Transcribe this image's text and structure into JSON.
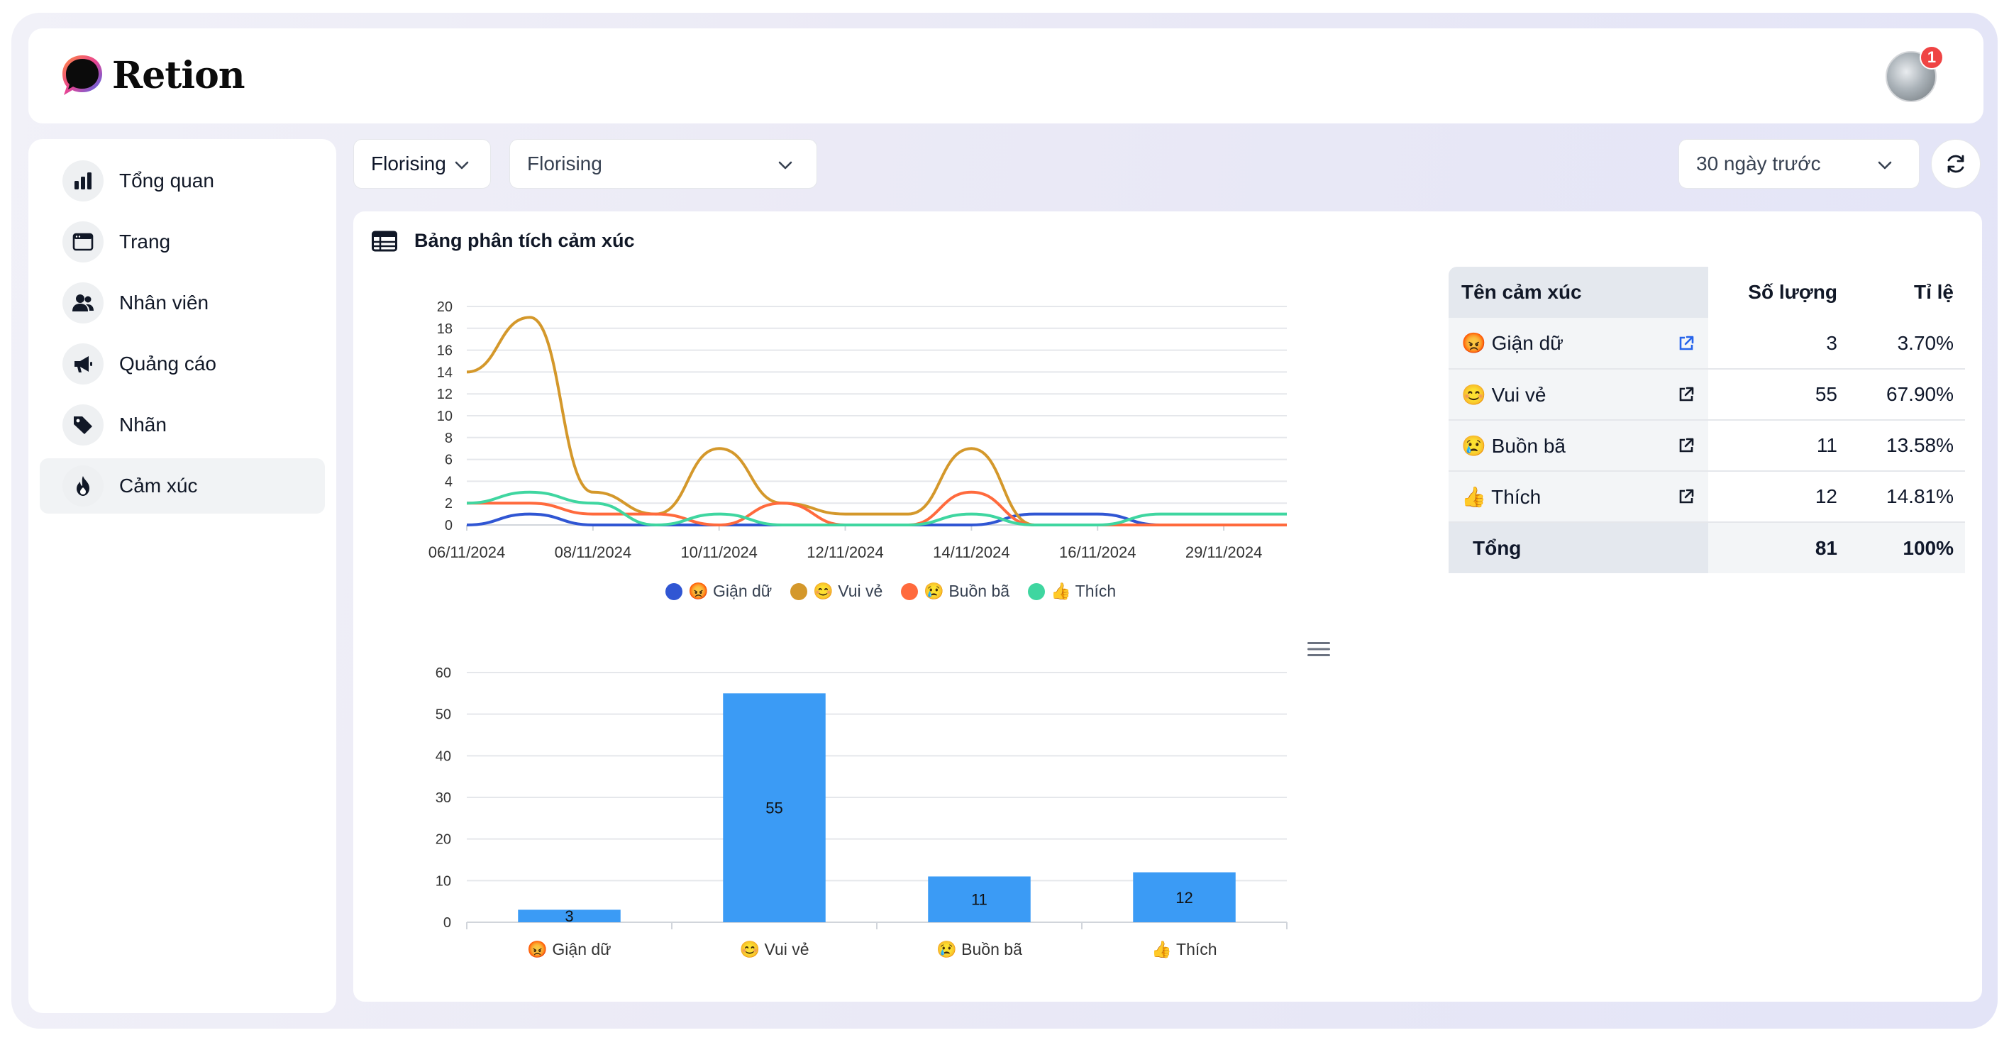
{
  "app": {
    "brand": "Retion",
    "notification_count": "1"
  },
  "sidebar": {
    "items": [
      {
        "label": "Tổng quan",
        "icon": "bar-chart-icon"
      },
      {
        "label": "Trang",
        "icon": "browser-window-icon"
      },
      {
        "label": "Nhân viên",
        "icon": "users-icon"
      },
      {
        "label": "Quảng cáo",
        "icon": "megaphone-icon"
      },
      {
        "label": "Nhãn",
        "icon": "tag-icon"
      },
      {
        "label": "Cảm xúc",
        "icon": "fire-icon",
        "active": true
      }
    ]
  },
  "toolbar": {
    "page_select": "Florising",
    "page_dropdown": "Florising",
    "date_range": "30 ngày trước"
  },
  "panel": {
    "title": "Bảng phân tích cảm xúc"
  },
  "colors": {
    "angry": "#3056d3",
    "happy": "#d4982b",
    "sad": "#ff6a3d",
    "like": "#3fd6a0",
    "bar": "#3b9bf5"
  },
  "chart_data": [
    {
      "type": "line",
      "x": [
        "06/11/2024",
        "07/11/2024",
        "08/11/2024",
        "09/11/2024",
        "10/11/2024",
        "11/11/2024",
        "12/11/2024",
        "13/11/2024",
        "14/11/2024",
        "15/11/2024",
        "16/11/2024",
        "17/11/2024",
        "29/11/2024",
        "30/11/2024"
      ],
      "x_tick_labels": [
        "06/11/2024",
        "08/11/2024",
        "10/11/2024",
        "12/11/2024",
        "14/11/2024",
        "16/11/2024",
        "29/11/2024"
      ],
      "series": [
        {
          "name": "😡 Giận dữ",
          "values": [
            0,
            1,
            0,
            0,
            0,
            0,
            0,
            0,
            0,
            1,
            1,
            0,
            0,
            0
          ]
        },
        {
          "name": "😊 Vui vẻ",
          "values": [
            14,
            19,
            3,
            1,
            7,
            2,
            1,
            1,
            7,
            0,
            0,
            0,
            0,
            0
          ]
        },
        {
          "name": "😢 Buồn bã",
          "values": [
            2,
            2,
            1,
            1,
            0,
            2,
            0,
            0,
            3,
            0,
            0,
            0,
            0,
            0
          ]
        },
        {
          "name": "👍 Thích",
          "values": [
            2,
            3,
            2,
            0,
            1,
            0,
            0,
            0,
            1,
            0,
            0,
            1,
            1,
            1
          ]
        }
      ],
      "ylim": [
        0,
        20
      ],
      "yticks": [
        0,
        2,
        4,
        6,
        8,
        10,
        12,
        14,
        16,
        18,
        20
      ],
      "legend": "bottom"
    },
    {
      "type": "bar",
      "categories": [
        "😡 Giận dữ",
        "😊 Vui vẻ",
        "😢 Buồn bã",
        "👍 Thích"
      ],
      "values": [
        3,
        55,
        11,
        12
      ],
      "ylim": [
        0,
        60
      ],
      "yticks": [
        0,
        10,
        20,
        30,
        40,
        50,
        60
      ]
    }
  ],
  "table": {
    "headers": [
      "Tên cảm xúc",
      "Số lượng",
      "Tỉ lệ"
    ],
    "rows": [
      {
        "name": "😡 Giận dữ",
        "count": "3",
        "ratio": "3.70%"
      },
      {
        "name": "😊 Vui vẻ",
        "count": "55",
        "ratio": "67.90%"
      },
      {
        "name": "😢 Buồn bã",
        "count": "11",
        "ratio": "13.58%"
      },
      {
        "name": "👍 Thích",
        "count": "12",
        "ratio": "14.81%"
      }
    ],
    "total": {
      "label": "Tổng",
      "count": "81",
      "ratio": "100%"
    }
  }
}
